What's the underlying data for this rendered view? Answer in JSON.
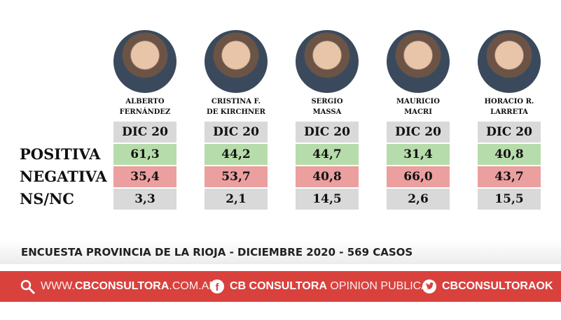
{
  "candidates": [
    {
      "name": [
        "ALBERTO",
        "FERNÁNDEZ"
      ],
      "period": "DIC 20",
      "values": [
        "61,3",
        "35,4",
        "3,3"
      ]
    },
    {
      "name": [
        "CRISTINA F.",
        "DE KIRCHNER"
      ],
      "period": "DIC 20",
      "values": [
        "44,2",
        "53,7",
        "2,1"
      ]
    },
    {
      "name": [
        "SERGIO",
        "MASSA"
      ],
      "period": "DIC 20",
      "values": [
        "44,7",
        "40,8",
        "14,5"
      ]
    },
    {
      "name": [
        "MAURICIO",
        "MACRI"
      ],
      "period": "DIC 20",
      "values": [
        "31,4",
        "66,0",
        "2,6"
      ]
    },
    {
      "name": [
        "HORACIO R.",
        "LARRETA"
      ],
      "period": "DIC 20",
      "values": [
        "40,8",
        "43,7",
        "15,5"
      ]
    }
  ],
  "rows": [
    "POSITIVA",
    "NEGATIVA",
    "NS/NC"
  ],
  "footer": {
    "caption": "ENCUESTA PROVINCIA DE LA RIOJA - DICIEMBRE 2020 -  569 CASOS",
    "web": [
      "WWW.",
      "CBCONSULTORA",
      ".COM.AR"
    ],
    "facebook": [
      "CB CONSULTORA",
      "OPINION PUBLICA"
    ],
    "twitter": "CBCONSULTORAOK"
  }
}
